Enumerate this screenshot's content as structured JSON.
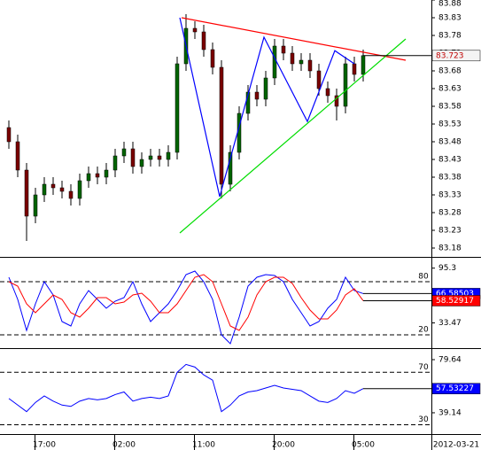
{
  "chart_data": [
    {
      "type": "candlestick",
      "categories": [
        null,
        null,
        null,
        null,
        "17:00",
        null,
        null,
        null,
        null,
        null,
        null,
        null,
        null,
        "02:00",
        null,
        null,
        null,
        null,
        null,
        null,
        null,
        null,
        "11:00",
        null,
        null,
        null,
        null,
        null,
        null,
        null,
        null,
        "20:00",
        null,
        null,
        null,
        null,
        null,
        null,
        null,
        null,
        "05:00"
      ],
      "date_label": "2012-03-21",
      "open": [
        83.52,
        83.48,
        83.4,
        83.27,
        83.33,
        83.36,
        83.35,
        83.34,
        83.32,
        83.37,
        83.39,
        83.38,
        83.4,
        83.44,
        83.46,
        83.41,
        83.43,
        83.44,
        83.43,
        83.45,
        83.7,
        83.8,
        83.79,
        83.74,
        83.69,
        83.36,
        83.45,
        83.56,
        83.62,
        83.6,
        83.66,
        83.75,
        83.73,
        83.7,
        83.71,
        83.68,
        83.63,
        83.61,
        83.58,
        83.7,
        83.67
      ],
      "high": [
        83.54,
        83.5,
        83.42,
        83.35,
        83.38,
        83.38,
        83.37,
        83.36,
        83.39,
        83.41,
        83.41,
        83.42,
        83.46,
        83.48,
        83.48,
        83.45,
        83.46,
        83.46,
        83.47,
        83.72,
        83.84,
        83.82,
        83.81,
        83.76,
        83.71,
        83.47,
        83.58,
        83.64,
        83.64,
        83.68,
        83.77,
        83.77,
        83.75,
        83.73,
        83.73,
        83.7,
        83.65,
        83.63,
        83.72,
        83.72,
        83.74
      ],
      "low": [
        83.46,
        83.38,
        83.2,
        83.25,
        83.31,
        83.33,
        83.32,
        83.3,
        83.3,
        83.35,
        83.36,
        83.36,
        83.38,
        83.42,
        83.39,
        83.39,
        83.41,
        83.41,
        83.41,
        83.43,
        83.68,
        83.77,
        83.72,
        83.67,
        83.32,
        83.34,
        83.43,
        83.54,
        83.58,
        83.58,
        83.64,
        83.71,
        83.68,
        83.68,
        83.66,
        83.61,
        83.59,
        83.54,
        83.56,
        83.65,
        83.65
      ],
      "close": [
        83.48,
        83.4,
        83.27,
        83.33,
        83.36,
        83.35,
        83.34,
        83.32,
        83.37,
        83.39,
        83.38,
        83.4,
        83.44,
        83.46,
        83.41,
        83.43,
        83.44,
        83.43,
        83.45,
        83.7,
        83.8,
        83.79,
        83.74,
        83.69,
        83.36,
        83.45,
        83.56,
        83.62,
        83.6,
        83.66,
        83.75,
        83.73,
        83.7,
        83.71,
        83.68,
        83.63,
        83.61,
        83.58,
        83.7,
        83.67,
        83.723
      ],
      "up_color": "#006400",
      "down_color": "#7a0000",
      "ylim": [
        83.155,
        83.88
      ],
      "yticks": [
        83.18,
        83.23,
        83.28,
        83.33,
        83.38,
        83.43,
        83.48,
        83.53,
        83.58,
        83.63,
        83.68,
        83.73,
        83.78,
        83.83,
        83.88
      ],
      "trendlines": [
        {
          "color": "#ff0000",
          "x": [
            19.5,
            44.8
          ],
          "y": [
            83.83,
            83.71
          ]
        },
        {
          "color": "#0000ff",
          "x": [
            19.3,
            23.8,
            28.8,
            33.7,
            36.8,
            39
          ],
          "y": [
            83.83,
            83.325,
            83.775,
            83.537,
            83.737,
            83.7
          ]
        },
        {
          "color": "#00dd00",
          "x": [
            19.3,
            44.8
          ],
          "y": [
            83.2225,
            83.77
          ]
        }
      ]
    },
    {
      "type": "line",
      "series": [
        {
          "color": "#0000ff",
          "values": [
            85,
            60,
            25,
            55,
            80,
            65,
            35,
            30,
            55,
            70,
            60,
            50,
            58,
            62,
            80,
            55,
            35,
            45,
            55,
            70,
            88,
            92,
            80,
            60,
            20,
            10,
            40,
            75,
            85,
            88,
            87,
            80,
            60,
            45,
            30,
            35,
            50,
            60,
            85,
            70,
            66.58503
          ]
        },
        {
          "color": "#ff0000",
          "values": [
            80,
            75,
            55,
            45,
            55,
            65,
            60,
            45,
            40,
            50,
            62,
            62,
            55,
            57,
            65,
            67,
            58,
            45,
            45,
            55,
            70,
            85,
            88,
            80,
            55,
            30,
            25,
            40,
            65,
            80,
            85,
            85,
            78,
            62,
            48,
            38,
            38,
            48,
            65,
            72,
            58.52917
          ]
        }
      ],
      "ylim": [
        5,
        105
      ],
      "yticks": [
        95.3,
        33.47
      ],
      "levels": [
        80,
        20
      ]
    },
    {
      "type": "line",
      "series": [
        {
          "color": "#0000ff",
          "values": [
            50,
            45,
            40,
            47,
            52,
            48,
            45,
            44,
            48,
            50,
            49,
            50,
            53,
            55,
            48,
            50,
            51,
            50,
            52,
            70,
            76,
            74,
            68,
            64,
            40,
            45,
            52,
            55,
            56,
            58,
            60,
            58,
            57,
            56,
            52,
            48,
            47,
            50,
            56,
            54,
            57.53227
          ]
        }
      ],
      "ylim": [
        22.9,
        86.4
      ],
      "yticks": [
        79.64,
        39.14
      ],
      "levels": [
        70,
        30
      ]
    }
  ]
}
